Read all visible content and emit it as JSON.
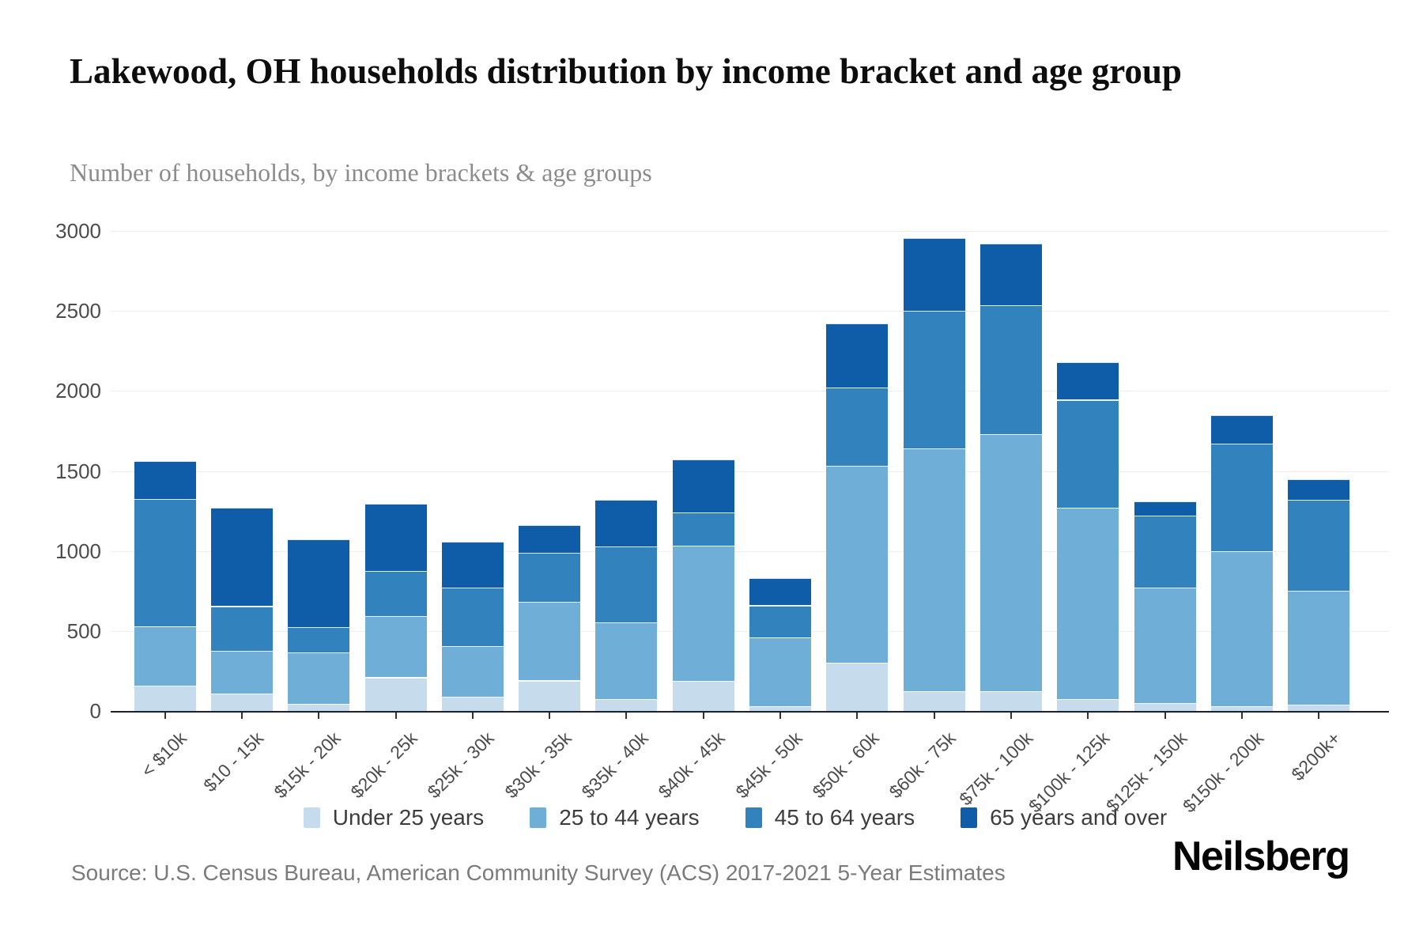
{
  "header": {
    "title": "Lakewood, OH households distribution by income bracket and age group",
    "subtitle": "Number of households, by income brackets & age groups"
  },
  "chart_data": {
    "type": "bar",
    "stacked": true,
    "title": "Lakewood, OH households distribution by income bracket and age group",
    "xlabel": "",
    "ylabel": "Number of households",
    "ylim": [
      0,
      3000
    ],
    "y_ticks": [
      0,
      500,
      1000,
      1500,
      2000,
      2500,
      3000
    ],
    "grid": "horizontal",
    "legend_position": "bottom",
    "categories": [
      "< $10k",
      "$10 - 15k",
      "$15k - 20k",
      "$20k - 25k",
      "$25k - 30k",
      "$30k - 35k",
      "$35k - 40k",
      "$40k - 45k",
      "$45k - 50k",
      "$50k - 60k",
      "$60k - 75k",
      "$75k - 100k",
      "$100k - 125k",
      "$125k - 150k",
      "$150k - 200k",
      "$200k+"
    ],
    "series": [
      {
        "name": "Under 25 years",
        "color": "#c6dbec",
        "values": [
          160,
          110,
          45,
          210,
          90,
          190,
          75,
          190,
          30,
          300,
          125,
          125,
          75,
          50,
          30,
          40
        ]
      },
      {
        "name": "25 to 44 years",
        "color": "#6fafd7",
        "values": [
          370,
          265,
          320,
          385,
          315,
          490,
          480,
          845,
          430,
          1230,
          1515,
          1605,
          1195,
          720,
          970,
          710
        ]
      },
      {
        "name": "45 to 64 years",
        "color": "#3182bd",
        "values": [
          795,
          280,
          160,
          280,
          365,
          310,
          475,
          205,
          200,
          490,
          860,
          805,
          675,
          450,
          670,
          570
        ]
      },
      {
        "name": "65 years and over",
        "color": "#0f5ca8",
        "values": [
          235,
          615,
          550,
          420,
          290,
          170,
          290,
          330,
          170,
          400,
          455,
          385,
          235,
          90,
          180,
          130
        ]
      }
    ],
    "totals": [
      1560,
      1270,
      1075,
      1295,
      1060,
      1160,
      1320,
      1570,
      830,
      2420,
      2955,
      2920,
      2180,
      1310,
      1850,
      1450
    ]
  },
  "footer": {
    "source": "Source: U.S. Census Bureau, American Community Survey (ACS) 2017-2021 5-Year Estimates",
    "logo": "Neilsberg"
  }
}
